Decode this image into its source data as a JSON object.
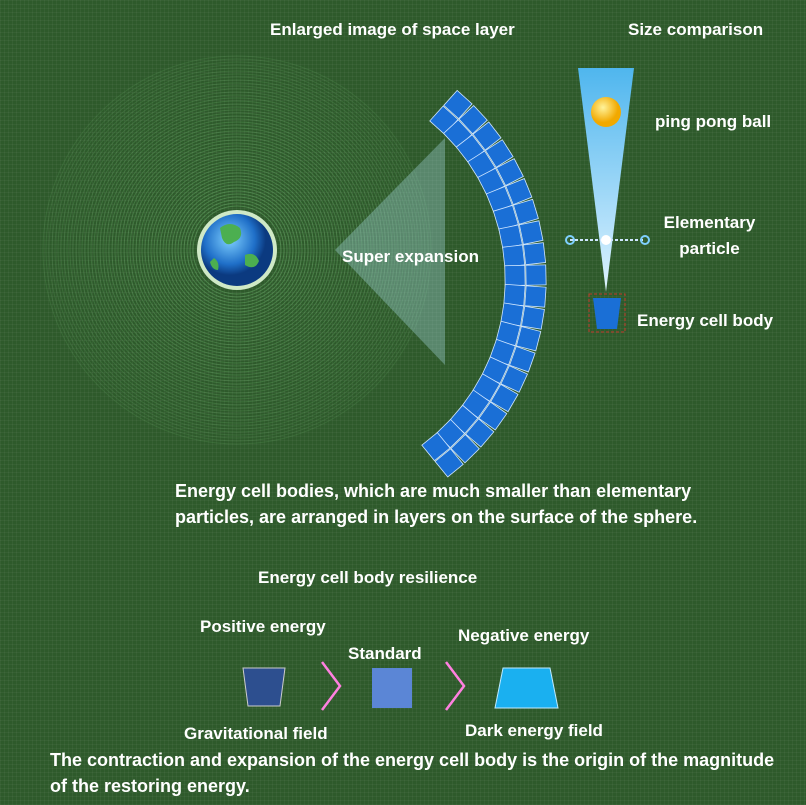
{
  "header": {
    "title": "Enlarged image of space layer",
    "size_title": "Size comparison"
  },
  "labels": {
    "ping_pong": "ping pong ball",
    "particle": "Elementary particle",
    "expansion": "Super expansion",
    "cell_body": "Energy cell body"
  },
  "description": "Energy cell bodies, which are much smaller than elementary particles, are arranged in layers on the surface of the sphere.",
  "resilience": {
    "title": "Energy cell body resilience",
    "positive": "Positive energy",
    "standard": "Standard",
    "negative": "Negative energy",
    "gravitational": "Gravitational field",
    "dark": "Dark energy field"
  },
  "footer": "The contraction and expansion of the energy cell body is the origin of the magnitude of the restoring energy."
}
